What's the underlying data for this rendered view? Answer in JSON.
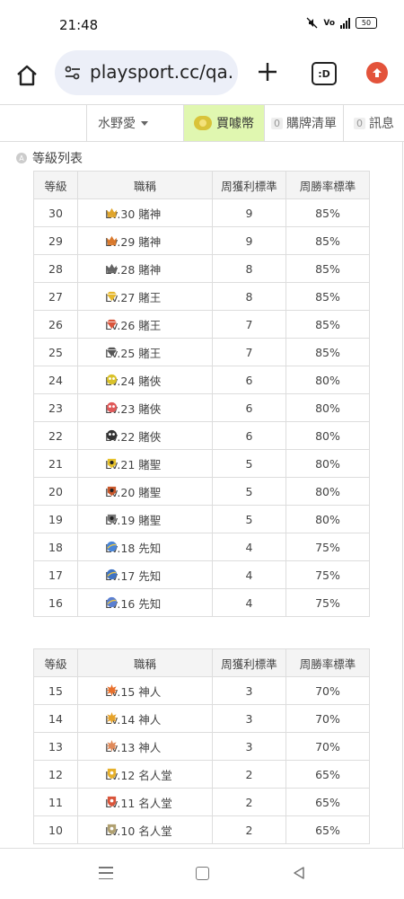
{
  "status": {
    "time": "21:48",
    "battery": "50"
  },
  "browser": {
    "url": "playsport.cc/qa.p",
    "tabs_label": ":D"
  },
  "nav": {
    "user": "水野愛",
    "buy": "買噱幣",
    "cart_count": "0",
    "cart": "購牌清單",
    "msg_count": "0",
    "msg": "訊息"
  },
  "section": {
    "icon": "A",
    "title": "等級列表"
  },
  "table": {
    "headers": [
      "等級",
      "職稱",
      "周獲利標準",
      "周勝率標準"
    ],
    "group1": [
      {
        "level": "30",
        "title": "Lv.30 賭神",
        "profit": "9",
        "rate": "85%",
        "icon_color": "#e0a52b",
        "icon": "crown-icon"
      },
      {
        "level": "29",
        "title": "Lv.29 賭神",
        "profit": "9",
        "rate": "85%",
        "icon_color": "#d9782b",
        "icon": "crown-icon"
      },
      {
        "level": "28",
        "title": "Lv.28 賭神",
        "profit": "8",
        "rate": "85%",
        "icon_color": "#666666",
        "icon": "crown-icon"
      },
      {
        "level": "27",
        "title": "Lv.27 賭王",
        "profit": "8",
        "rate": "85%",
        "icon_color": "#e6b82e",
        "icon": "diamond-icon"
      },
      {
        "level": "26",
        "title": "Lv.26 賭王",
        "profit": "7",
        "rate": "85%",
        "icon_color": "#d9553b",
        "icon": "diamond-icon"
      },
      {
        "level": "25",
        "title": "Lv.25 賭王",
        "profit": "7",
        "rate": "85%",
        "icon_color": "#555555",
        "icon": "diamond-icon"
      },
      {
        "level": "24",
        "title": "Lv.24 賭俠",
        "profit": "6",
        "rate": "80%",
        "icon_color": "#d9c22b",
        "icon": "mask-icon"
      },
      {
        "level": "23",
        "title": "Lv.23 賭俠",
        "profit": "6",
        "rate": "80%",
        "icon_color": "#e05a5a",
        "icon": "mask-icon"
      },
      {
        "level": "22",
        "title": "Lv.22 賭俠",
        "profit": "6",
        "rate": "80%",
        "icon_color": "#333333",
        "icon": "mask-icon"
      },
      {
        "level": "21",
        "title": "Lv.21 賭聖",
        "profit": "5",
        "rate": "80%",
        "icon_color": "#e6c12b",
        "icon": "badge-icon"
      },
      {
        "level": "20",
        "title": "Lv.20 賭聖",
        "profit": "5",
        "rate": "80%",
        "icon_color": "#c9582b",
        "icon": "badge-icon"
      },
      {
        "level": "19",
        "title": "Lv.19 賭聖",
        "profit": "5",
        "rate": "80%",
        "icon_color": "#777777",
        "icon": "badge-icon"
      },
      {
        "level": "18",
        "title": "Lv.18 先知",
        "profit": "4",
        "rate": "75%",
        "icon_color": "#4a86d9",
        "icon": "orb-icon"
      },
      {
        "level": "17",
        "title": "Lv.17 先知",
        "profit": "4",
        "rate": "75%",
        "icon_color": "#3f73c4",
        "icon": "orb-icon"
      },
      {
        "level": "16",
        "title": "Lv.16 先知",
        "profit": "4",
        "rate": "75%",
        "icon_color": "#5a7fd1",
        "icon": "orb-icon"
      }
    ],
    "group2": [
      {
        "level": "15",
        "title": "Lv.15 神人",
        "profit": "3",
        "rate": "70%",
        "icon_color": "#e8702b",
        "icon": "sun-icon"
      },
      {
        "level": "14",
        "title": "Lv.14 神人",
        "profit": "3",
        "rate": "70%",
        "icon_color": "#e6a32b",
        "icon": "sun-icon"
      },
      {
        "level": "13",
        "title": "Lv.13 神人",
        "profit": "3",
        "rate": "70%",
        "icon_color": "#e08a5a",
        "icon": "sun-icon"
      },
      {
        "level": "12",
        "title": "Lv.12 名人堂",
        "profit": "2",
        "rate": "65%",
        "icon_color": "#e6b02b",
        "icon": "shield-icon"
      },
      {
        "level": "11",
        "title": "Lv.11 名人堂",
        "profit": "2",
        "rate": "65%",
        "icon_color": "#d9553b",
        "icon": "shield-icon"
      },
      {
        "level": "10",
        "title": "Lv.10 名人堂",
        "profit": "2",
        "rate": "65%",
        "icon_color": "#b0a070",
        "icon": "shield-icon"
      }
    ]
  }
}
